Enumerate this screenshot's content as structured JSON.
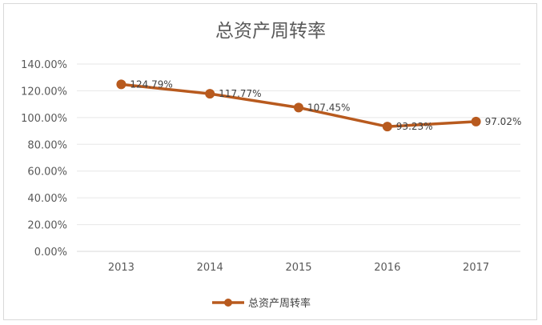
{
  "chart_data": {
    "type": "line",
    "title": "总资产周转率",
    "categories": [
      "2013",
      "2014",
      "2015",
      "2016",
      "2017"
    ],
    "series": [
      {
        "name": "总资产周转率",
        "values": [
          124.79,
          117.77,
          107.45,
          93.23,
          97.02
        ],
        "labels": [
          "124.79%",
          "117.77%",
          "107.45%",
          "93.23%",
          "97.02%"
        ]
      }
    ],
    "y_ticks": [
      "0.00%",
      "20.00%",
      "40.00%",
      "60.00%",
      "80.00%",
      "100.00%",
      "120.00%",
      "140.00%"
    ],
    "ylim": [
      0,
      140
    ],
    "grid": true,
    "legend_position": "bottom",
    "colors": {
      "line": "#b85a1e",
      "grid": "#e7e7e7",
      "text": "#595959"
    }
  }
}
